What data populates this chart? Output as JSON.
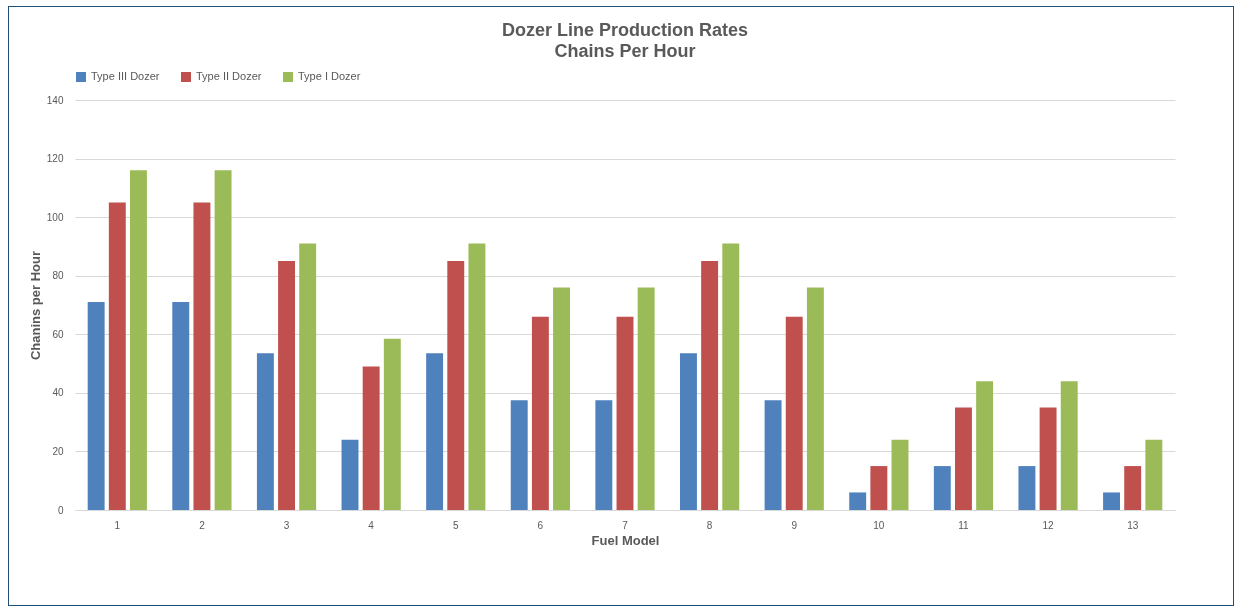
{
  "chart_data": {
    "type": "bar",
    "title": "Dozer Line Production Rates",
    "subtitle": "Chains Per Hour",
    "xlabel": "Fuel Model",
    "ylabel": "Chanins per Hour",
    "categories": [
      "1",
      "2",
      "3",
      "4",
      "5",
      "6",
      "7",
      "8",
      "9",
      "10",
      "11",
      "12",
      "13"
    ],
    "series": [
      {
        "name": "Type III Dozer",
        "color": "#4f81bd",
        "values": [
          71,
          71,
          53.5,
          24,
          53.5,
          37.5,
          37.5,
          53.5,
          37.5,
          6,
          15,
          15,
          6
        ]
      },
      {
        "name": "Type II Dozer",
        "color": "#c0504d",
        "values": [
          105,
          105,
          85,
          49,
          85,
          66,
          66,
          85,
          66,
          15,
          35,
          35,
          15
        ]
      },
      {
        "name": "Type I Dozer",
        "color": "#9bbb59",
        "values": [
          116,
          116,
          91,
          58.5,
          91,
          76,
          76,
          91,
          76,
          24,
          44,
          44,
          24
        ]
      }
    ],
    "ylim": [
      0,
      140
    ],
    "yticks": [
      0,
      20,
      40,
      60,
      80,
      100,
      120,
      140
    ],
    "grid": "y",
    "legend": "top"
  }
}
